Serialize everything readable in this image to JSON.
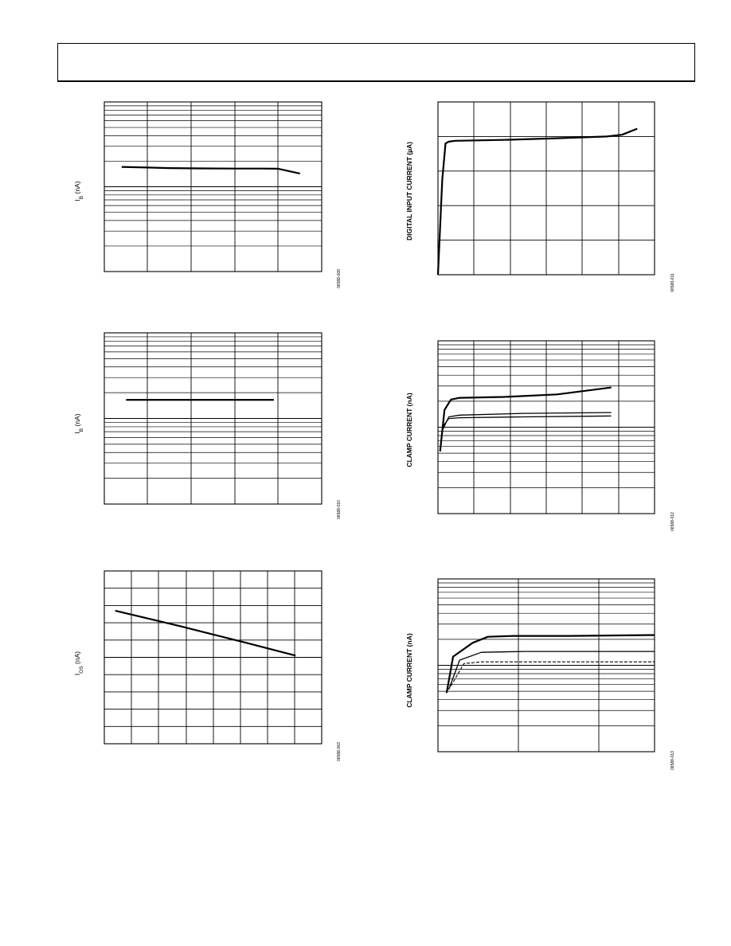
{
  "header": {},
  "chart_data": [
    {
      "id": "ib-a",
      "type": "line",
      "ylabel": {
        "main": "I",
        "sub": "B",
        "unit": " (nA)"
      },
      "figure_id": "06588-009",
      "grid": "log",
      "series": [
        {
          "x": [
            0.08,
            0.2,
            0.3,
            0.45,
            0.6,
            0.72,
            0.8,
            0.9
          ],
          "y": [
            0.617,
            0.613,
            0.61,
            0.608,
            0.607,
            0.607,
            0.606,
            0.578
          ]
        }
      ]
    },
    {
      "id": "ib-b",
      "type": "line",
      "ylabel": {
        "main": "I",
        "sub": "B",
        "unit": " (nA)"
      },
      "figure_id": "06588-010",
      "grid": "log",
      "series": [
        {
          "x": [
            0.1,
            0.3,
            0.5,
            0.65,
            0.78
          ],
          "y": [
            0.609,
            0.609,
            0.609,
            0.609,
            0.609
          ]
        },
        {
          "x": [
            0.65,
            0.78
          ],
          "y": [
            0.609,
            0.609
          ],
          "style": "dashed"
        }
      ]
    },
    {
      "id": "ios",
      "type": "line",
      "ylabel": {
        "main": "I",
        "sub": "OS",
        "unit": " (nA)"
      },
      "figure_id": "06588-063",
      "grid": "linear",
      "series": [
        {
          "x": [
            0.05,
            0.35,
            0.65,
            0.88
          ],
          "y": [
            0.77,
            0.68,
            0.585,
            0.51
          ]
        }
      ]
    },
    {
      "id": "digital-input",
      "type": "line",
      "ylabel": {
        "main": "DIGITAL INPUT CURRENT (µA)"
      },
      "figure_id": "06588-011",
      "grid": "linear",
      "series": [
        {
          "x": [
            0.0,
            0.02,
            0.035,
            0.05,
            0.08,
            0.3,
            0.55,
            0.78,
            0.85,
            0.92
          ],
          "y": [
            0.0,
            0.55,
            0.76,
            0.77,
            0.775,
            0.78,
            0.79,
            0.8,
            0.81,
            0.845
          ]
        }
      ]
    },
    {
      "id": "clamp-a",
      "type": "line",
      "ylabel": {
        "main": "CLAMP CURRENT (nA)"
      },
      "figure_id": "06588-012",
      "grid": "log",
      "series": [
        {
          "x": [
            0.01,
            0.03,
            0.06,
            0.1,
            0.3,
            0.55,
            0.8
          ],
          "y": [
            0.36,
            0.6,
            0.66,
            0.67,
            0.675,
            0.69,
            0.73
          ]
        },
        {
          "x": [
            0.02,
            0.05,
            0.1,
            0.4,
            0.8
          ],
          "y": [
            0.48,
            0.56,
            0.57,
            0.58,
            0.585
          ]
        },
        {
          "x": [
            0.02,
            0.05,
            0.1,
            0.4,
            0.8
          ],
          "y": [
            0.5,
            0.55,
            0.555,
            0.56,
            0.565
          ]
        }
      ]
    },
    {
      "id": "clamp-b",
      "type": "line",
      "ylabel": {
        "main": "CLAMP CURRENT (nA)"
      },
      "figure_id": "06588-013",
      "grid": "log",
      "series": [
        {
          "x": [
            0.04,
            0.07,
            0.16,
            0.23,
            0.35,
            0.6,
            1.0
          ],
          "y": [
            0.34,
            0.55,
            0.63,
            0.665,
            0.67,
            0.67,
            0.675
          ]
        },
        {
          "x": [
            0.05,
            0.1,
            0.2,
            0.4,
            1.0
          ],
          "y": [
            0.36,
            0.53,
            0.575,
            0.58,
            0.58
          ]
        },
        {
          "x": [
            0.06,
            0.12,
            0.2,
            0.45,
            1.0
          ],
          "y": [
            0.38,
            0.51,
            0.52,
            0.52,
            0.52
          ],
          "style": "dashed"
        }
      ]
    }
  ]
}
